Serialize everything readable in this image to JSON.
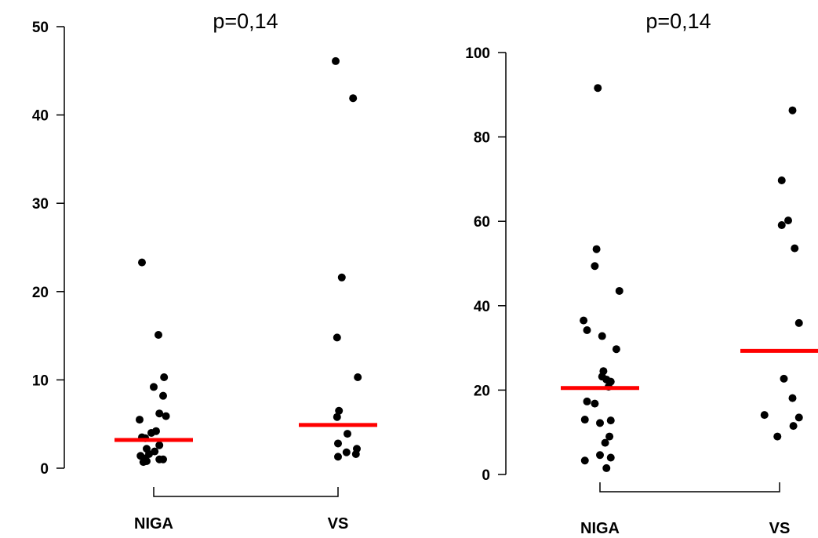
{
  "chart_data": [
    {
      "type": "scatter",
      "title": "p=0,14",
      "categories": [
        "NIGA",
        "VS"
      ],
      "ylim": [
        0,
        50
      ],
      "yticks": [
        0,
        10,
        20,
        30,
        40,
        50
      ],
      "grid": false,
      "median_color": "#ff0000",
      "point_color": "#000000",
      "groups": [
        {
          "category": "NIGA",
          "median": 3.2,
          "points": [
            {
              "jitter": -0.25,
              "y": 23.3
            },
            {
              "jitter": 0.1,
              "y": 15.1
            },
            {
              "jitter": 0.22,
              "y": 10.3
            },
            {
              "jitter": 0.0,
              "y": 9.2
            },
            {
              "jitter": 0.2,
              "y": 8.2
            },
            {
              "jitter": 0.12,
              "y": 6.2
            },
            {
              "jitter": 0.26,
              "y": 5.9
            },
            {
              "jitter": -0.3,
              "y": 5.5
            },
            {
              "jitter": 0.05,
              "y": 4.2
            },
            {
              "jitter": -0.05,
              "y": 4.0
            },
            {
              "jitter": -0.25,
              "y": 3.5
            },
            {
              "jitter": -0.18,
              "y": 3.4
            },
            {
              "jitter": 0.12,
              "y": 2.6
            },
            {
              "jitter": -0.15,
              "y": 2.2
            },
            {
              "jitter": 0.02,
              "y": 1.9
            },
            {
              "jitter": -0.1,
              "y": 1.6
            },
            {
              "jitter": -0.28,
              "y": 1.4
            },
            {
              "jitter": -0.2,
              "y": 1.1
            },
            {
              "jitter": 0.12,
              "y": 1.0
            },
            {
              "jitter": 0.2,
              "y": 1.0
            },
            {
              "jitter": -0.22,
              "y": 0.7
            },
            {
              "jitter": -0.15,
              "y": 0.8
            }
          ]
        },
        {
          "category": "VS",
          "median": 4.9,
          "points": [
            {
              "jitter": -0.05,
              "y": 46.1
            },
            {
              "jitter": 0.32,
              "y": 41.9
            },
            {
              "jitter": 0.08,
              "y": 21.6
            },
            {
              "jitter": -0.02,
              "y": 14.8
            },
            {
              "jitter": 0.42,
              "y": 10.3
            },
            {
              "jitter": 0.02,
              "y": 6.5
            },
            {
              "jitter": -0.02,
              "y": 5.8
            },
            {
              "jitter": 0.2,
              "y": 3.9
            },
            {
              "jitter": 0.0,
              "y": 2.8
            },
            {
              "jitter": 0.4,
              "y": 2.2
            },
            {
              "jitter": 0.18,
              "y": 1.8
            },
            {
              "jitter": 0.38,
              "y": 1.6
            },
            {
              "jitter": 0.0,
              "y": 1.3
            }
          ]
        }
      ]
    },
    {
      "type": "scatter",
      "title": "p=0,14",
      "categories": [
        "NIGA",
        "VS"
      ],
      "ylim": [
        0,
        100
      ],
      "yticks": [
        0,
        20,
        40,
        60,
        80,
        100
      ],
      "grid": false,
      "median_color": "#ff0000",
      "point_color": "#000000",
      "groups": [
        {
          "category": "NIGA",
          "median": 20.5,
          "points": [
            {
              "jitter": -0.05,
              "y": 91.6
            },
            {
              "jitter": -0.08,
              "y": 53.4
            },
            {
              "jitter": -0.12,
              "y": 49.4
            },
            {
              "jitter": 0.45,
              "y": 43.5
            },
            {
              "jitter": -0.38,
              "y": 36.5
            },
            {
              "jitter": -0.3,
              "y": 34.2
            },
            {
              "jitter": 0.05,
              "y": 32.8
            },
            {
              "jitter": 0.38,
              "y": 29.7
            },
            {
              "jitter": 0.08,
              "y": 24.5
            },
            {
              "jitter": 0.05,
              "y": 23.2
            },
            {
              "jitter": 0.15,
              "y": 22.5
            },
            {
              "jitter": 0.25,
              "y": 22.0
            },
            {
              "jitter": 0.2,
              "y": 20.8
            },
            {
              "jitter": -0.3,
              "y": 17.3
            },
            {
              "jitter": -0.12,
              "y": 16.8
            },
            {
              "jitter": -0.35,
              "y": 13.0
            },
            {
              "jitter": 0.25,
              "y": 12.8
            },
            {
              "jitter": 0.0,
              "y": 12.2
            },
            {
              "jitter": 0.22,
              "y": 9.0
            },
            {
              "jitter": 0.12,
              "y": 7.5
            },
            {
              "jitter": 0.0,
              "y": 4.6
            },
            {
              "jitter": 0.25,
              "y": 4.0
            },
            {
              "jitter": -0.35,
              "y": 3.3
            },
            {
              "jitter": 0.15,
              "y": 1.5
            }
          ]
        },
        {
          "category": "VS",
          "median": 29.3,
          "points": [
            {
              "jitter": 0.3,
              "y": 86.3
            },
            {
              "jitter": 0.05,
              "y": 69.7
            },
            {
              "jitter": 0.2,
              "y": 60.2
            },
            {
              "jitter": 0.05,
              "y": 59.1
            },
            {
              "jitter": 0.35,
              "y": 53.6
            },
            {
              "jitter": 0.45,
              "y": 35.9
            },
            {
              "jitter": 0.1,
              "y": 22.7
            },
            {
              "jitter": 0.3,
              "y": 18.1
            },
            {
              "jitter": -0.35,
              "y": 14.1
            },
            {
              "jitter": 0.45,
              "y": 13.5
            },
            {
              "jitter": 0.32,
              "y": 11.5
            },
            {
              "jitter": -0.05,
              "y": 9.0
            }
          ]
        }
      ]
    }
  ]
}
